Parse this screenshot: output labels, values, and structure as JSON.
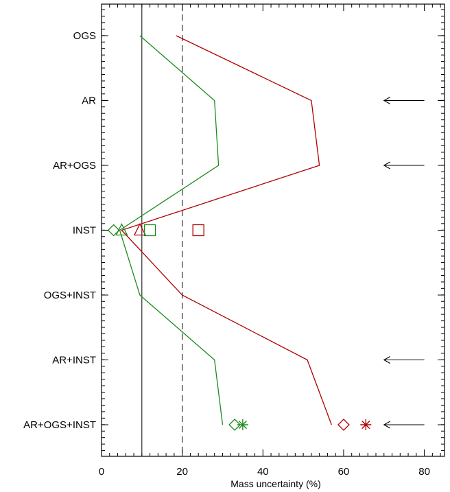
{
  "chart_data": {
    "type": "line",
    "orientation": "horizontal",
    "categories": [
      "OGS",
      "AR",
      "AR+OGS",
      "INST",
      "OGS+INST",
      "AR+INST",
      "AR+OGS+INST"
    ],
    "xlabel": "Mass uncertainty (%)",
    "xlim": [
      0,
      85
    ],
    "xticks": [
      0,
      20,
      40,
      60,
      80
    ],
    "colors": {
      "green": "#1a8c1a",
      "red": "#b00000",
      "black": "#000000"
    },
    "series": [
      {
        "color": "green",
        "values": [
          9.5,
          28,
          29,
          4.5,
          9.5,
          28,
          30
        ]
      },
      {
        "color": "red",
        "values": [
          18.5,
          52,
          54,
          5,
          20,
          51,
          57
        ]
      }
    ],
    "reference_lines": [
      {
        "x": 10,
        "style": "solid"
      },
      {
        "x": 20,
        "style": "dashed"
      }
    ],
    "markers": [
      {
        "category": "INST",
        "x": 3,
        "shape": "diamond",
        "color": "green"
      },
      {
        "category": "INST",
        "x": 5,
        "shape": "triangle",
        "color": "green"
      },
      {
        "category": "INST",
        "x": 9.5,
        "shape": "triangle",
        "color": "red"
      },
      {
        "category": "INST",
        "x": 12,
        "shape": "square",
        "color": "green"
      },
      {
        "category": "INST",
        "x": 24,
        "shape": "square",
        "color": "red"
      },
      {
        "category": "AR+OGS+INST",
        "x": 33,
        "shape": "diamond",
        "color": "green"
      },
      {
        "category": "AR+OGS+INST",
        "x": 35,
        "shape": "asterisk",
        "color": "green"
      },
      {
        "category": "AR+OGS+INST",
        "x": 60,
        "shape": "diamond",
        "color": "red"
      },
      {
        "category": "AR+OGS+INST",
        "x": 65.5,
        "shape": "asterisk",
        "color": "red"
      }
    ],
    "arrows": [
      {
        "category": "AR",
        "from_x": 80,
        "to_x": 70
      },
      {
        "category": "AR+OGS",
        "from_x": 80,
        "to_x": 70
      },
      {
        "category": "AR+INST",
        "from_x": 80,
        "to_x": 70
      },
      {
        "category": "AR+OGS+INST",
        "from_x": 80,
        "to_x": 70
      }
    ]
  }
}
